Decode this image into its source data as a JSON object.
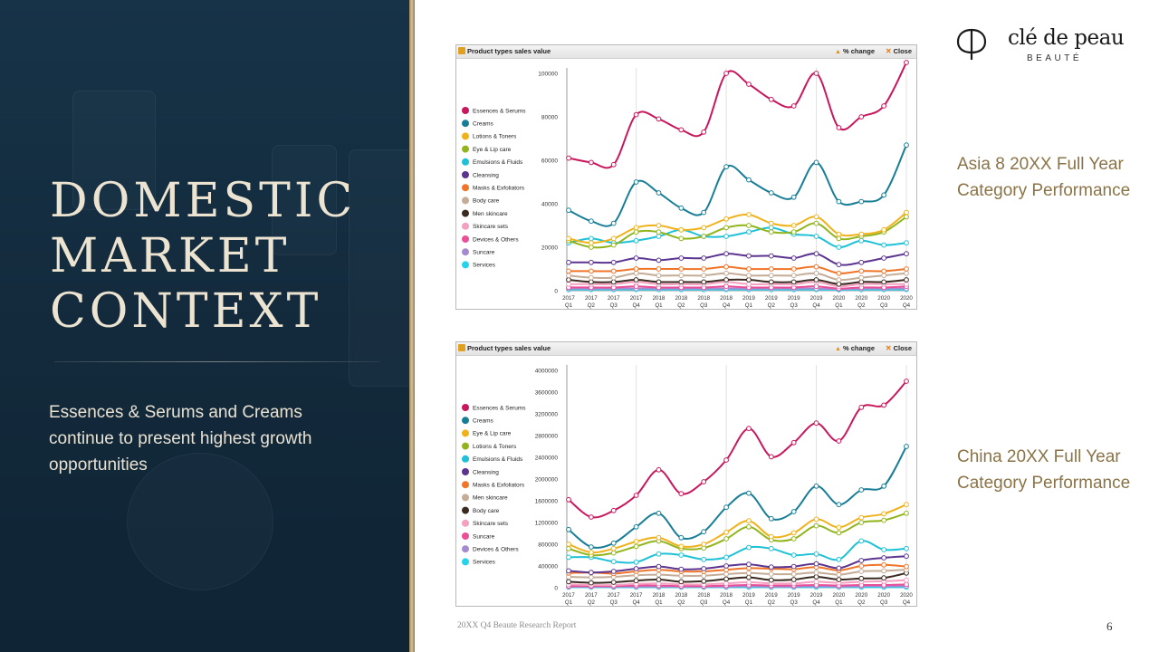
{
  "slide": {
    "title_lines": [
      "DOMESTIC",
      "MARKET",
      "CONTEXT"
    ],
    "subtitle": "Essences & Serums and Creams continue to present highest growth opportunities",
    "logo_text": "clé de peau",
    "logo_sub": "BEAUTÉ",
    "label_a": "Asia 8 20XX Full Year Category Performance",
    "label_b": "China 20XX Full Year Category Performance",
    "footer": "20XX Q4 Beaute Research Report",
    "page_number": "6"
  },
  "panels": [
    {
      "title": "Product types sales value",
      "change_label": "% change",
      "close_label": "Close"
    },
    {
      "title": "Product types sales value",
      "change_label": "% change",
      "close_label": "Close"
    }
  ],
  "chart_data": [
    {
      "type": "line",
      "title": "",
      "xlabel": "",
      "ylabel": "",
      "categories": [
        "2017 Q1",
        "2017 Q2",
        "2017 Q3",
        "2017 Q4",
        "2018 Q1",
        "2018 Q2",
        "2018 Q3",
        "2018 Q4",
        "2019 Q1",
        "2019 Q2",
        "2019 Q3",
        "2019 Q4",
        "2020 Q1",
        "2020 Q2",
        "2020 Q3",
        "2020 Q4"
      ],
      "ylim": [
        0,
        100000
      ],
      "yticks": [
        0,
        20000,
        40000,
        60000,
        80000,
        100000
      ],
      "grid": true,
      "legend_position": "left",
      "series": [
        {
          "name": "Essences & Serums",
          "color": "#c8175d",
          "values": [
            61000,
            59000,
            58000,
            81000,
            79000,
            74000,
            73000,
            100000,
            95000,
            88000,
            85000,
            100000,
            75000,
            80000,
            85000,
            105000
          ]
        },
        {
          "name": "Creams",
          "color": "#177e96",
          "values": [
            37000,
            32000,
            31000,
            50000,
            45000,
            38000,
            36000,
            57000,
            51000,
            45000,
            43000,
            59000,
            41000,
            41000,
            44000,
            67000
          ]
        },
        {
          "name": "Lotions & Toners",
          "color": "#f0b21b",
          "values": [
            24000,
            22000,
            24000,
            29000,
            30000,
            28000,
            29000,
            33000,
            35000,
            31000,
            30000,
            34000,
            26000,
            26000,
            28000,
            36000
          ]
        },
        {
          "name": "Eye & Lip care",
          "color": "#92b51d",
          "values": [
            23000,
            20000,
            21000,
            27000,
            27000,
            24000,
            25000,
            29000,
            30000,
            27000,
            27000,
            31000,
            24000,
            25000,
            27000,
            34000
          ]
        },
        {
          "name": "Emulsions & Fluids",
          "color": "#1fc1d6",
          "values": [
            22000,
            24000,
            22000,
            23000,
            25000,
            28000,
            25000,
            25000,
            27000,
            29000,
            26000,
            25000,
            20000,
            23000,
            21000,
            22000
          ]
        },
        {
          "name": "Cleansing",
          "color": "#5c3590",
          "values": [
            13000,
            13000,
            13000,
            15000,
            14000,
            15000,
            15000,
            17000,
            16000,
            16000,
            15000,
            17000,
            12000,
            13000,
            15000,
            17000
          ]
        },
        {
          "name": "Masks & Exfoliators",
          "color": "#f07528",
          "values": [
            9000,
            9000,
            9000,
            10000,
            10000,
            10000,
            10000,
            11000,
            10000,
            10000,
            10000,
            11000,
            8000,
            9000,
            9000,
            10000
          ]
        },
        {
          "name": "Body care",
          "color": "#c4ac96",
          "values": [
            7000,
            6000,
            6000,
            8000,
            7000,
            7000,
            7000,
            8000,
            7000,
            7000,
            7000,
            8000,
            5000,
            6000,
            7000,
            8000
          ]
        },
        {
          "name": "Men skincare",
          "color": "#3b2a20",
          "values": [
            5000,
            4000,
            4000,
            5000,
            4000,
            4000,
            4000,
            5000,
            5000,
            4000,
            4000,
            5000,
            3000,
            4000,
            4000,
            5000
          ]
        },
        {
          "name": "Skincare sets",
          "color": "#f5a0c1",
          "values": [
            3000,
            3000,
            3000,
            4000,
            3000,
            3000,
            3000,
            4000,
            3000,
            3000,
            3000,
            4000,
            2000,
            3000,
            3000,
            3000
          ]
        },
        {
          "name": "Devices & Others",
          "color": "#ea4f98",
          "values": [
            1500,
            1500,
            1500,
            2000,
            1500,
            1500,
            1500,
            2000,
            1500,
            1500,
            1500,
            2000,
            1000,
            1500,
            1500,
            2000
          ]
        },
        {
          "name": "Suncare",
          "color": "#a58ad0",
          "values": [
            1000,
            1000,
            1000,
            1000,
            1000,
            1000,
            1000,
            1000,
            1000,
            1000,
            1000,
            1000,
            800,
            1000,
            1000,
            1000
          ]
        },
        {
          "name": "Services",
          "color": "#27d3ec",
          "values": [
            500,
            500,
            500,
            500,
            500,
            500,
            500,
            500,
            500,
            500,
            500,
            500,
            400,
            500,
            500,
            500
          ]
        }
      ]
    },
    {
      "type": "line",
      "title": "",
      "xlabel": "",
      "ylabel": "",
      "categories": [
        "2017 Q1",
        "2017 Q2",
        "2017 Q3",
        "2017 Q4",
        "2018 Q1",
        "2018 Q2",
        "2018 Q3",
        "2018 Q4",
        "2019 Q1",
        "2019 Q2",
        "2019 Q3",
        "2019 Q4",
        "2020 Q1",
        "2020 Q2",
        "2020 Q3",
        "2020 Q4"
      ],
      "ylim": [
        0,
        4000000
      ],
      "yticks": [
        0,
        400000,
        800000,
        1200000,
        1600000,
        2000000,
        2400000,
        2800000,
        3200000,
        3600000,
        4000000
      ],
      "grid": true,
      "legend_position": "left",
      "series": [
        {
          "name": "Essences & Serums",
          "color": "#c8175d",
          "values": [
            1620000,
            1300000,
            1420000,
            1700000,
            2170000,
            1730000,
            1950000,
            2350000,
            2930000,
            2410000,
            2670000,
            3030000,
            2700000,
            3320000,
            3360000,
            3800000
          ]
        },
        {
          "name": "Creams",
          "color": "#177e96",
          "values": [
            1070000,
            750000,
            820000,
            1120000,
            1370000,
            920000,
            1030000,
            1480000,
            1740000,
            1270000,
            1400000,
            1870000,
            1530000,
            1800000,
            1870000,
            2600000
          ]
        },
        {
          "name": "Eye & Lip care",
          "color": "#f0b21b",
          "values": [
            800000,
            650000,
            720000,
            850000,
            920000,
            760000,
            800000,
            1020000,
            1230000,
            940000,
            1010000,
            1260000,
            1110000,
            1290000,
            1360000,
            1530000
          ]
        },
        {
          "name": "Lotions & Toners",
          "color": "#92b51d",
          "values": [
            720000,
            600000,
            640000,
            760000,
            860000,
            720000,
            730000,
            900000,
            1120000,
            880000,
            900000,
            1140000,
            1010000,
            1200000,
            1240000,
            1370000
          ]
        },
        {
          "name": "Emulsions & Fluids",
          "color": "#1fc1d6",
          "values": [
            560000,
            560000,
            480000,
            470000,
            620000,
            600000,
            520000,
            560000,
            740000,
            720000,
            600000,
            620000,
            520000,
            860000,
            700000,
            720000
          ]
        },
        {
          "name": "Cleansing",
          "color": "#5c3590",
          "values": [
            310000,
            280000,
            300000,
            350000,
            390000,
            340000,
            350000,
            400000,
            430000,
            380000,
            390000,
            440000,
            360000,
            500000,
            550000,
            580000
          ]
        },
        {
          "name": "Masks & Exfoliators",
          "color": "#f07528",
          "values": [
            270000,
            280000,
            260000,
            300000,
            330000,
            300000,
            300000,
            330000,
            360000,
            350000,
            340000,
            380000,
            320000,
            400000,
            420000,
            390000
          ]
        },
        {
          "name": "Men skincare",
          "color": "#c4ac96",
          "values": [
            200000,
            190000,
            200000,
            230000,
            240000,
            220000,
            220000,
            250000,
            270000,
            250000,
            250000,
            280000,
            240000,
            300000,
            310000,
            330000
          ]
        },
        {
          "name": "Body care",
          "color": "#3b2a20",
          "values": [
            110000,
            90000,
            100000,
            130000,
            150000,
            110000,
            120000,
            160000,
            190000,
            140000,
            150000,
            200000,
            150000,
            170000,
            180000,
            270000
          ]
        },
        {
          "name": "Skincare sets",
          "color": "#f5a0c1",
          "values": [
            60000,
            50000,
            50000,
            70000,
            80000,
            60000,
            60000,
            80000,
            100000,
            80000,
            80000,
            110000,
            90000,
            110000,
            120000,
            140000
          ]
        },
        {
          "name": "Suncare",
          "color": "#ea4f98",
          "values": [
            30000,
            30000,
            30000,
            40000,
            40000,
            30000,
            30000,
            40000,
            50000,
            40000,
            40000,
            50000,
            40000,
            50000,
            50000,
            60000
          ]
        },
        {
          "name": "Devices & Others",
          "color": "#a58ad0",
          "values": [
            20000,
            20000,
            20000,
            20000,
            20000,
            20000,
            20000,
            20000,
            30000,
            20000,
            20000,
            30000,
            20000,
            30000,
            30000,
            30000
          ]
        },
        {
          "name": "Services",
          "color": "#27d3ec",
          "values": [
            10000,
            10000,
            10000,
            10000,
            10000,
            10000,
            10000,
            10000,
            10000,
            10000,
            10000,
            10000,
            10000,
            10000,
            10000,
            10000
          ]
        }
      ]
    }
  ]
}
